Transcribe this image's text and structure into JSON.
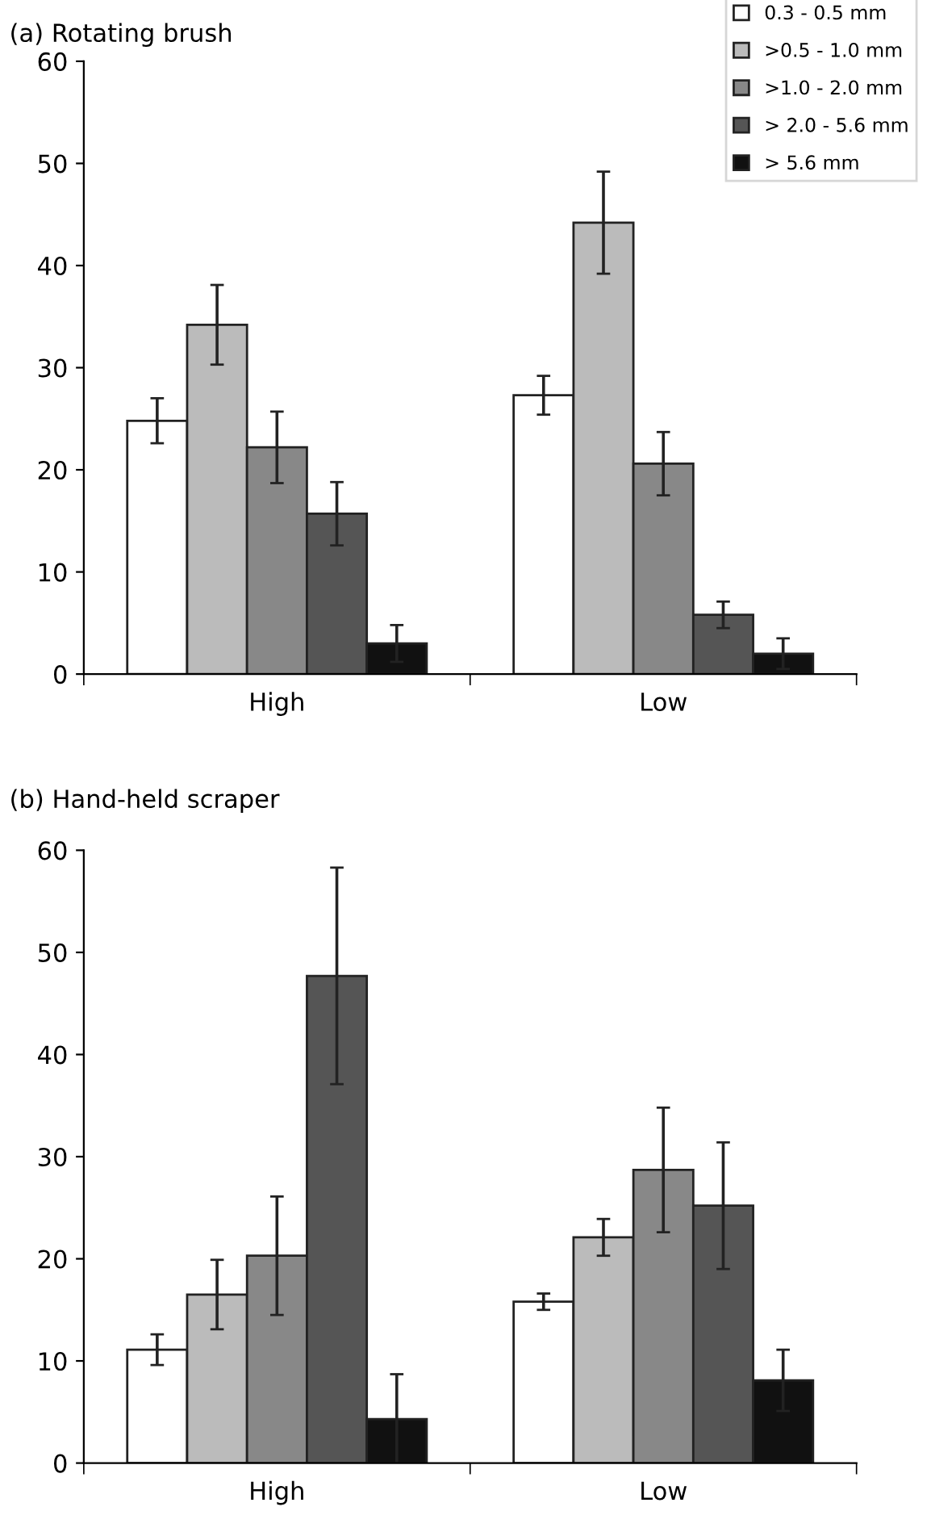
{
  "chart_data": [
    {
      "type": "bar",
      "title": "(a) Rotating brush",
      "categories": [
        "High",
        "Low"
      ],
      "ylim": [
        0,
        60
      ],
      "yticks": [
        0,
        10,
        20,
        30,
        40,
        50,
        60
      ],
      "grid": false,
      "legend": "top right",
      "series": [
        {
          "name": "0.3 - 0.5 mm",
          "color": "#ffffff",
          "values": [
            24.8,
            27.3
          ],
          "errors": [
            2.2,
            1.9
          ]
        },
        {
          "name": ">0.5 - 1.0 mm",
          "color": "#bbbbbb",
          "values": [
            34.2,
            44.2
          ],
          "errors": [
            3.9,
            5.0
          ]
        },
        {
          "name": ">1.0 - 2.0 mm",
          "color": "#888888",
          "values": [
            22.2,
            20.6
          ],
          "errors": [
            3.5,
            3.1
          ]
        },
        {
          "name": "> 2.0 - 5.6 mm",
          "color": "#555555",
          "values": [
            15.7,
            5.8
          ],
          "errors": [
            3.1,
            1.3
          ]
        },
        {
          "name": "> 5.6 mm",
          "color": "#111111",
          "values": [
            3.0,
            2.0
          ],
          "errors": [
            1.8,
            1.5
          ]
        }
      ]
    },
    {
      "type": "bar",
      "title": "(b) Hand-held scraper",
      "categories": [
        "High",
        "Low"
      ],
      "ylim": [
        0,
        60
      ],
      "yticks": [
        0,
        10,
        20,
        30,
        40,
        50,
        60
      ],
      "grid": false,
      "legend": false,
      "series": [
        {
          "color": "#ffffff",
          "values": [
            11.1,
            15.8
          ],
          "errors": [
            1.5,
            0.8
          ]
        },
        {
          "color": "#bbbbbb",
          "values": [
            16.5,
            22.1
          ],
          "errors": [
            3.4,
            1.8
          ]
        },
        {
          "color": "#888888",
          "values": [
            20.3,
            28.7
          ],
          "errors": [
            5.8,
            6.1
          ]
        },
        {
          "color": "#555555",
          "values": [
            47.7,
            25.2
          ],
          "errors": [
            10.6,
            6.2
          ]
        },
        {
          "color": "#111111",
          "values": [
            4.3,
            8.1
          ],
          "errors": [
            4.4,
            3.0
          ]
        }
      ]
    }
  ]
}
